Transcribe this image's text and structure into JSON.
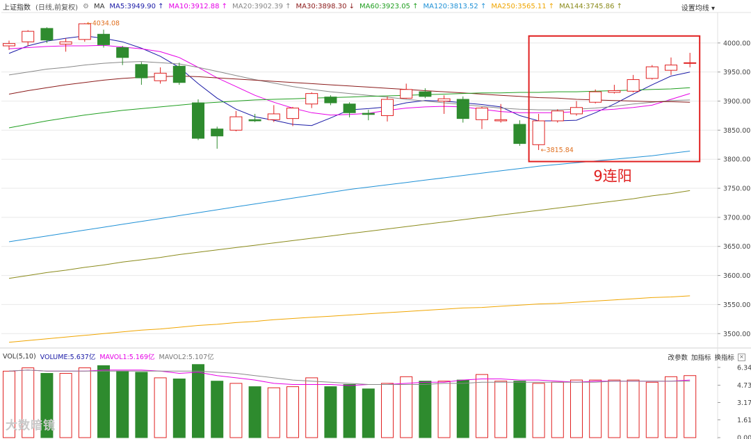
{
  "header": {
    "index_name": "上证指数",
    "period_info": "(日线,前复权)",
    "settings_icon": "gear-icon",
    "ma_label": "MA",
    "ma_items": [
      {
        "label": "MA5:3949.90",
        "arrow": "↑",
        "color": "#1a1aa6"
      },
      {
        "label": "MA10:3912.88",
        "arrow": "↑",
        "color": "#e600e6"
      },
      {
        "label": "MA20:3902.39",
        "arrow": "↑",
        "color": "#888888"
      },
      {
        "label": "MA30:3898.30",
        "arrow": "↓",
        "color": "#8b1a1a"
      },
      {
        "label": "MA60:3923.05",
        "arrow": "↑",
        "color": "#1f9e1f"
      },
      {
        "label": "MA120:3813.52",
        "arrow": "↑",
        "color": "#1e90d6"
      },
      {
        "label": "MA250:3565.11",
        "arrow": "↑",
        "color": "#f0a500"
      },
      {
        "label": "MA144:3745.86",
        "arrow": "↑",
        "color": "#8a8a1a"
      }
    ],
    "settings_label": "设置均线 ▾"
  },
  "volume_header": {
    "vol_label": "VOL(5,10)",
    "volume": "VOLUME:5.637亿",
    "mavol1": "MAVOL1:5.169亿",
    "mavol2": "MAVOL2:5.107亿",
    "tools": [
      "改参数",
      "加指标",
      "换指标"
    ],
    "close_icon": "close-icon"
  },
  "annotation": {
    "label": "9连阳",
    "color": "#e02020"
  },
  "watermark": "大数暗镜",
  "colors": {
    "up": "#e02020",
    "down": "#2e8b2e",
    "grid": "#e8e8e8"
  },
  "chart_data": {
    "type": "candlestick",
    "price_axis": {
      "ticks": [
        4000,
        3950,
        3900,
        3850,
        3800,
        3750,
        3700,
        3650,
        3600,
        3550,
        3500
      ],
      "labels": [
        "4000.00",
        "3950.00",
        "3900.00",
        "3850.00",
        "3800.00",
        "3750.00",
        "3700.00",
        "3650.00",
        "3600.00",
        "3550.00",
        "3500.00"
      ],
      "range": [
        3480,
        4050
      ]
    },
    "volume_axis": {
      "ticks": [
        6.34,
        4.73,
        3.17,
        1.61,
        0.0
      ],
      "labels": [
        "6.34",
        "4.73",
        "3.17",
        "1.61",
        "0.00"
      ],
      "range": [
        0,
        6.9
      ],
      "unit": "亿"
    },
    "candles": [
      {
        "o": 3995,
        "c": 3999,
        "h": 4004,
        "l": 3988
      },
      {
        "o": 4002,
        "c": 4020,
        "h": 4022,
        "l": 3995
      },
      {
        "o": 4025,
        "c": 4005,
        "h": 4027,
        "l": 4000
      },
      {
        "o": 3998,
        "c": 4002,
        "h": 4008,
        "l": 3985
      },
      {
        "o": 4006,
        "c": 4033,
        "h": 4034.08,
        "l": 4002
      },
      {
        "o": 4015,
        "c": 3997,
        "h": 4023,
        "l": 3992
      },
      {
        "o": 3992,
        "c": 3975,
        "h": 3995,
        "l": 3962
      },
      {
        "o": 3963,
        "c": 3940,
        "h": 3967,
        "l": 3928
      },
      {
        "o": 3935,
        "c": 3948,
        "h": 3958,
        "l": 3930
      },
      {
        "o": 3960,
        "c": 3932,
        "h": 3966,
        "l": 3928
      },
      {
        "o": 3897,
        "c": 3836,
        "h": 3903,
        "l": 3833
      },
      {
        "o": 3852,
        "c": 3840,
        "h": 3856,
        "l": 3818
      },
      {
        "o": 3850,
        "c": 3873,
        "h": 3883,
        "l": 3848
      },
      {
        "o": 3868,
        "c": 3866,
        "h": 3878,
        "l": 3864
      },
      {
        "o": 3868,
        "c": 3878,
        "h": 3893,
        "l": 3864
      },
      {
        "o": 3870,
        "c": 3888,
        "h": 3890,
        "l": 3857
      },
      {
        "o": 3895,
        "c": 3913,
        "h": 3915,
        "l": 3888
      },
      {
        "o": 3907,
        "c": 3897,
        "h": 3910,
        "l": 3893
      },
      {
        "o": 3895,
        "c": 3880,
        "h": 3898,
        "l": 3872
      },
      {
        "o": 3879,
        "c": 3877,
        "h": 3885,
        "l": 3867
      },
      {
        "o": 3875,
        "c": 3903,
        "h": 3908,
        "l": 3865
      },
      {
        "o": 3905,
        "c": 3920,
        "h": 3930,
        "l": 3904
      },
      {
        "o": 3916,
        "c": 3908,
        "h": 3922,
        "l": 3905
      },
      {
        "o": 3900,
        "c": 3904,
        "h": 3910,
        "l": 3878
      },
      {
        "o": 3903,
        "c": 3870,
        "h": 3908,
        "l": 3863
      },
      {
        "o": 3868,
        "c": 3888,
        "h": 3890,
        "l": 3852
      },
      {
        "o": 3866,
        "c": 3868,
        "h": 3895,
        "l": 3863
      },
      {
        "o": 3860,
        "c": 3827,
        "h": 3867,
        "l": 3823
      },
      {
        "o": 3825,
        "c": 3866,
        "h": 3878,
        "l": 3815.84
      },
      {
        "o": 3866,
        "c": 3883,
        "h": 3886,
        "l": 3863
      },
      {
        "o": 3878,
        "c": 3889,
        "h": 3900,
        "l": 3875
      },
      {
        "o": 3898,
        "c": 3916,
        "h": 3920,
        "l": 3896
      },
      {
        "o": 3915,
        "c": 3918,
        "h": 3928,
        "l": 3913
      },
      {
        "o": 3917,
        "c": 3937,
        "h": 3945,
        "l": 3915
      },
      {
        "o": 3939,
        "c": 3959,
        "h": 3962,
        "l": 3937
      },
      {
        "o": 3953,
        "c": 3962,
        "h": 3975,
        "l": 3945
      },
      {
        "o": 3965,
        "c": 3966,
        "h": 3983,
        "l": 3958
      }
    ],
    "annotations": [
      {
        "label": "4034.08",
        "index": 4,
        "value": 4034.08
      },
      {
        "label": "3815.84",
        "index": 28,
        "value": 3815.84
      }
    ],
    "ma_series": [
      {
        "name": "MA5",
        "color": "#1a1aa6",
        "values": [
          3982,
          3995,
          4003,
          4008,
          4012,
          4008,
          4002,
          3991,
          3977,
          3958,
          3930,
          3905,
          3886,
          3873,
          3867,
          3860,
          3858,
          3871,
          3885,
          3887,
          3890,
          3897,
          3901,
          3900,
          3897,
          3894,
          3890,
          3875,
          3866,
          3866,
          3867,
          3880,
          3895,
          3912,
          3928,
          3943,
          3950
        ]
      },
      {
        "name": "MA10",
        "color": "#e600e6",
        "values": [
          3990,
          3992,
          3994,
          3995,
          3995,
          3996,
          3993,
          3990,
          3985,
          3975,
          3958,
          3940,
          3925,
          3910,
          3898,
          3888,
          3880,
          3876,
          3877,
          3879,
          3884,
          3888,
          3890,
          3891,
          3890,
          3886,
          3882,
          3880,
          3880,
          3880,
          3882,
          3884,
          3886,
          3889,
          3893,
          3903,
          3913
        ]
      },
      {
        "name": "MA20",
        "color": "#888888",
        "values": [
          3945,
          3950,
          3955,
          3958,
          3962,
          3965,
          3967,
          3968,
          3966,
          3964,
          3958,
          3951,
          3944,
          3937,
          3931,
          3925,
          3920,
          3916,
          3913,
          3910,
          3907,
          3903,
          3900,
          3897,
          3894,
          3891,
          3888,
          3886,
          3885,
          3885,
          3886,
          3888,
          3891,
          3895,
          3898,
          3901,
          3902
        ]
      },
      {
        "name": "MA30",
        "color": "#8b1a1a",
        "values": [
          3912,
          3918,
          3923,
          3928,
          3932,
          3936,
          3939,
          3941,
          3942,
          3943,
          3942,
          3940,
          3938,
          3936,
          3934,
          3932,
          3930,
          3928,
          3926,
          3924,
          3922,
          3920,
          3918,
          3916,
          3914,
          3912,
          3910,
          3908,
          3906,
          3905,
          3903,
          3902,
          3901,
          3900,
          3899,
          3899,
          3898
        ]
      },
      {
        "name": "MA60",
        "color": "#1f9e1f",
        "values": [
          3854,
          3860,
          3866,
          3871,
          3876,
          3880,
          3884,
          3887,
          3890,
          3893,
          3896,
          3898,
          3900,
          3902,
          3903,
          3904,
          3905,
          3906,
          3907,
          3908,
          3909,
          3910,
          3911,
          3912,
          3913,
          3914,
          3914,
          3915,
          3915,
          3916,
          3916,
          3917,
          3918,
          3919,
          3920,
          3921,
          3923
        ]
      },
      {
        "name": "MA120",
        "color": "#1e90d6",
        "values": [
          3658,
          3663,
          3668,
          3673,
          3678,
          3683,
          3688,
          3693,
          3698,
          3703,
          3708,
          3713,
          3718,
          3723,
          3728,
          3733,
          3738,
          3743,
          3748,
          3752,
          3756,
          3760,
          3764,
          3768,
          3772,
          3776,
          3780,
          3784,
          3788,
          3791,
          3794,
          3797,
          3800,
          3803,
          3806,
          3810,
          3814
        ]
      },
      {
        "name": "MA144",
        "color": "#8a8a1a",
        "values": [
          3595,
          3600,
          3605,
          3609,
          3614,
          3618,
          3623,
          3627,
          3631,
          3636,
          3640,
          3644,
          3648,
          3652,
          3656,
          3660,
          3664,
          3668,
          3672,
          3676,
          3680,
          3684,
          3688,
          3692,
          3696,
          3700,
          3704,
          3708,
          3712,
          3716,
          3720,
          3724,
          3728,
          3732,
          3737,
          3741,
          3746
        ]
      },
      {
        "name": "MA250",
        "color": "#f0a500",
        "values": [
          3485,
          3488,
          3491,
          3494,
          3497,
          3500,
          3503,
          3506,
          3508,
          3511,
          3514,
          3516,
          3519,
          3521,
          3524,
          3526,
          3528,
          3530,
          3532,
          3534,
          3536,
          3538,
          3540,
          3542,
          3544,
          3545,
          3547,
          3549,
          3551,
          3552,
          3554,
          3556,
          3558,
          3560,
          3562,
          3563,
          3565
        ]
      }
    ],
    "volume": [
      6.0,
      6.3,
      5.8,
      5.8,
      6.3,
      6.5,
      6.0,
      5.9,
      5.4,
      5.3,
      6.6,
      5.1,
      4.9,
      4.6,
      4.5,
      4.6,
      5.4,
      4.6,
      4.8,
      4.4,
      4.9,
      5.5,
      5.1,
      5.1,
      5.2,
      5.7,
      5.1,
      5.1,
      4.9,
      5.0,
      5.2,
      5.2,
      5.2,
      5.2,
      5.0,
      5.5,
      5.6
    ],
    "volume_ma": [
      {
        "name": "MAVOL1",
        "color": "#e600e6",
        "values": [
          6.0,
          6.1,
          6.0,
          6.0,
          6.0,
          6.1,
          6.1,
          6.1,
          6.0,
          5.8,
          5.9,
          5.6,
          5.4,
          5.2,
          4.9,
          4.8,
          4.8,
          4.8,
          4.7,
          4.8,
          4.8,
          4.9,
          5.0,
          5.0,
          5.2,
          5.3,
          5.3,
          5.2,
          5.2,
          5.1,
          5.0,
          5.1,
          5.1,
          5.1,
          5.1,
          5.1,
          5.2
        ]
      },
      {
        "name": "MAVOL2",
        "color": "#888888",
        "values": [
          6.0,
          6.1,
          6.0,
          6.0,
          6.0,
          6.0,
          6.0,
          6.0,
          6.0,
          6.0,
          6.0,
          5.9,
          5.8,
          5.6,
          5.4,
          5.2,
          5.1,
          5.0,
          4.9,
          4.8,
          4.8,
          4.8,
          4.8,
          4.9,
          4.9,
          5.0,
          5.0,
          5.0,
          5.0,
          5.0,
          5.0,
          5.0,
          5.1,
          5.1,
          5.1,
          5.1,
          5.1
        ]
      }
    ]
  }
}
